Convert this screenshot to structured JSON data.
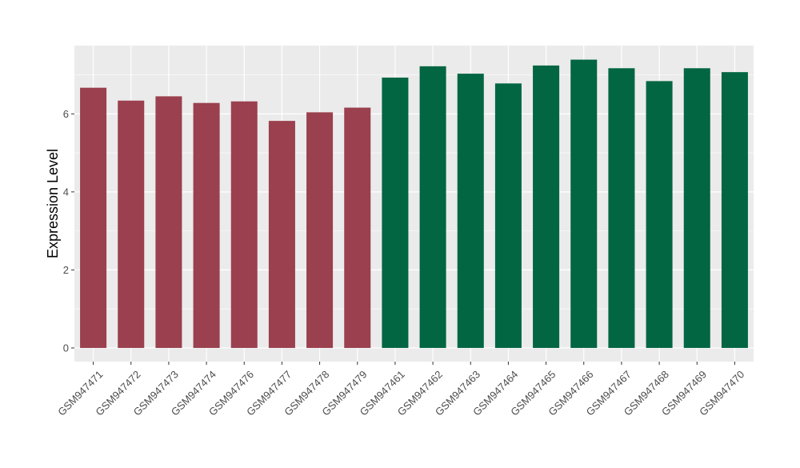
{
  "chart_data": {
    "type": "bar",
    "title": "",
    "xlabel": "",
    "ylabel": "Expression Level",
    "ylim": [
      -0.35,
      7.75
    ],
    "yticks": [
      0,
      2,
      4,
      6
    ],
    "ytick_labels": [
      "0",
      "2",
      "4",
      "6"
    ],
    "grid": true,
    "legend": "none",
    "categories": [
      "GSM947471",
      "GSM947472",
      "GSM947473",
      "GSM947474",
      "GSM947476",
      "GSM947477",
      "GSM947478",
      "GSM947479",
      "GSM947461",
      "GSM947462",
      "GSM947463",
      "GSM947464",
      "GSM947465",
      "GSM947466",
      "GSM947467",
      "GSM947468",
      "GSM947469",
      "GSM947470"
    ],
    "values": [
      6.67,
      6.34,
      6.45,
      6.28,
      6.32,
      5.82,
      6.04,
      6.16,
      6.93,
      7.22,
      7.03,
      6.78,
      7.24,
      7.39,
      7.17,
      6.84,
      7.17,
      7.07
    ],
    "bar_groups": [
      0,
      0,
      0,
      0,
      0,
      0,
      0,
      0,
      1,
      1,
      1,
      1,
      1,
      1,
      1,
      1,
      1,
      1
    ],
    "group_colors": [
      "#9a404e",
      "#026643"
    ],
    "panel_background": "#ebebeb",
    "grid_color": "#ffffff"
  }
}
